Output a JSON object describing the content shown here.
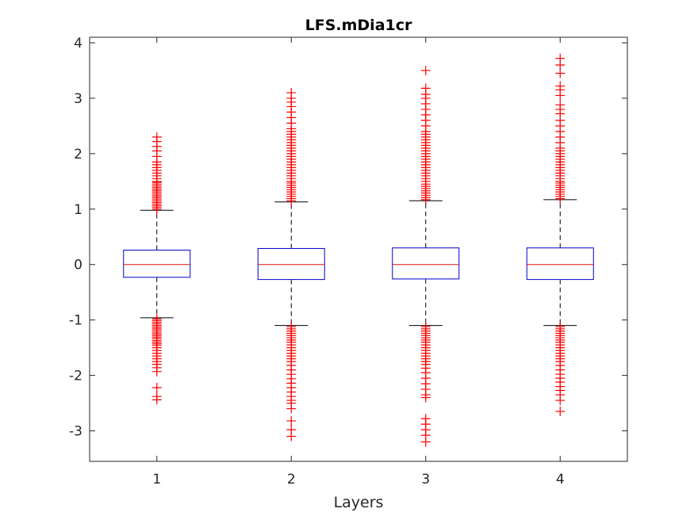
{
  "chart_data": {
    "type": "box",
    "title": "LFS.mDia1cr",
    "xlabel": "Layers",
    "ylabel": "",
    "categories": [
      "1",
      "2",
      "3",
      "4"
    ],
    "ylim": [
      -3.55,
      4.1
    ],
    "yticks": [
      -3,
      -2,
      -1,
      0,
      1,
      2,
      3,
      4
    ],
    "ytick_labels": [
      "-3",
      "-2",
      "-1",
      "0",
      "1",
      "2",
      "3",
      "4"
    ],
    "grid": false,
    "colors": {
      "box": "#0000cc",
      "median": "#e01010",
      "whisker": "#000000",
      "outlier": "#ff0000",
      "axis": "#262626"
    },
    "boxes": [
      {
        "category": "1",
        "q1": -0.23,
        "median": 0.0,
        "q3": 0.26,
        "whisker_low": -0.96,
        "whisker_high": 0.98,
        "outliers_high": [
          1.0,
          1.03,
          1.06,
          1.09,
          1.12,
          1.15,
          1.18,
          1.21,
          1.24,
          1.27,
          1.3,
          1.33,
          1.36,
          1.39,
          1.42,
          1.45,
          1.48,
          1.5,
          1.55,
          1.6,
          1.65,
          1.7,
          1.75,
          1.8,
          1.85,
          1.95,
          2.05,
          2.13,
          2.22,
          2.3
        ],
        "outliers_low": [
          -0.98,
          -1.01,
          -1.04,
          -1.07,
          -1.1,
          -1.13,
          -1.16,
          -1.19,
          -1.22,
          -1.25,
          -1.28,
          -1.31,
          -1.34,
          -1.37,
          -1.4,
          -1.43,
          -1.46,
          -1.5,
          -1.55,
          -1.6,
          -1.65,
          -1.7,
          -1.75,
          -1.8,
          -1.86,
          -1.93,
          -2.22,
          -2.38,
          -2.44
        ]
      },
      {
        "category": "2",
        "q1": -0.27,
        "median": 0.0,
        "q3": 0.29,
        "whisker_low": -1.1,
        "whisker_high": 1.13,
        "outliers_high": [
          1.15,
          1.19,
          1.23,
          1.27,
          1.31,
          1.35,
          1.39,
          1.43,
          1.47,
          1.5,
          1.55,
          1.6,
          1.65,
          1.7,
          1.75,
          1.8,
          1.85,
          1.9,
          1.95,
          2.0,
          2.05,
          2.1,
          2.15,
          2.2,
          2.25,
          2.3,
          2.35,
          2.4,
          2.45,
          2.55,
          2.65,
          2.75,
          2.85,
          2.93,
          3.0,
          3.1
        ],
        "outliers_low": [
          -1.12,
          -1.16,
          -1.2,
          -1.24,
          -1.28,
          -1.32,
          -1.36,
          -1.4,
          -1.45,
          -1.5,
          -1.55,
          -1.6,
          -1.65,
          -1.7,
          -1.75,
          -1.82,
          -1.9,
          -1.98,
          -2.06,
          -2.14,
          -2.22,
          -2.3,
          -2.38,
          -2.45,
          -2.5,
          -2.6,
          -2.82,
          -2.98,
          -3.1
        ]
      },
      {
        "category": "3",
        "q1": -0.26,
        "median": 0.0,
        "q3": 0.3,
        "whisker_low": -1.1,
        "whisker_high": 1.15,
        "outliers_high": [
          1.17,
          1.21,
          1.25,
          1.29,
          1.33,
          1.37,
          1.41,
          1.45,
          1.5,
          1.55,
          1.6,
          1.65,
          1.7,
          1.75,
          1.8,
          1.85,
          1.9,
          1.95,
          2.0,
          2.05,
          2.1,
          2.15,
          2.2,
          2.25,
          2.3,
          2.35,
          2.4,
          2.5,
          2.6,
          2.7,
          2.8,
          2.9,
          3.0,
          3.07,
          3.18,
          3.5
        ],
        "outliers_low": [
          -1.12,
          -1.16,
          -1.2,
          -1.24,
          -1.28,
          -1.32,
          -1.36,
          -1.4,
          -1.45,
          -1.5,
          -1.55,
          -1.6,
          -1.65,
          -1.7,
          -1.75,
          -1.8,
          -1.87,
          -1.95,
          -2.05,
          -2.15,
          -2.25,
          -2.35,
          -2.4,
          -2.78,
          -2.88,
          -2.98,
          -3.08,
          -3.2
        ]
      },
      {
        "category": "4",
        "q1": -0.27,
        "median": 0.0,
        "q3": 0.3,
        "whisker_low": -1.1,
        "whisker_high": 1.17,
        "outliers_high": [
          1.19,
          1.23,
          1.27,
          1.31,
          1.35,
          1.39,
          1.43,
          1.47,
          1.5,
          1.55,
          1.6,
          1.65,
          1.7,
          1.75,
          1.8,
          1.85,
          1.9,
          1.95,
          2.0,
          2.05,
          2.1,
          2.2,
          2.3,
          2.4,
          2.5,
          2.6,
          2.72,
          2.8,
          2.88,
          3.05,
          3.15,
          3.22,
          3.45,
          3.6,
          3.72
        ],
        "outliers_low": [
          -1.12,
          -1.16,
          -1.2,
          -1.24,
          -1.28,
          -1.32,
          -1.36,
          -1.4,
          -1.45,
          -1.5,
          -1.55,
          -1.6,
          -1.65,
          -1.7,
          -1.75,
          -1.82,
          -1.9,
          -1.98,
          -2.05,
          -2.12,
          -2.2,
          -2.27,
          -2.35,
          -2.45,
          -2.65
        ]
      }
    ]
  }
}
